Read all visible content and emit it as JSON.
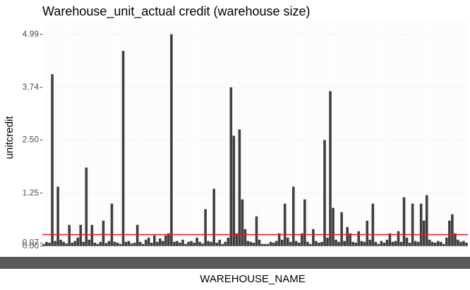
{
  "chart_data": {
    "type": "bar",
    "title": "Warehouse_unit_actual credit (warehouse size)",
    "x_label": "WAREHOUSE_NAME",
    "y_label": "unitcredit",
    "categories": [
      null,
      null,
      null,
      null,
      null,
      null,
      null,
      null,
      null,
      null,
      null,
      null,
      null,
      null,
      null,
      null,
      null,
      null,
      null,
      null,
      null,
      null,
      null,
      null,
      null,
      null,
      null,
      null,
      null,
      null,
      null,
      null,
      null,
      null,
      null,
      null,
      null,
      null,
      null,
      null,
      null,
      null,
      null,
      null,
      null,
      null,
      null,
      null,
      null,
      null,
      null,
      null,
      null,
      null,
      null,
      null,
      null,
      null,
      null,
      null,
      null,
      null,
      null,
      null,
      null,
      null,
      null,
      null,
      null,
      null,
      null,
      null,
      null,
      null,
      null,
      null,
      null,
      null,
      null,
      null,
      null,
      null,
      null,
      null,
      null,
      null,
      null,
      null,
      null,
      null,
      null,
      null,
      null,
      null,
      null,
      null,
      null,
      null,
      null,
      null,
      null,
      null,
      null,
      null,
      null,
      null,
      null,
      null,
      null,
      null,
      null,
      null,
      null,
      null,
      null,
      null,
      null,
      null,
      null,
      null,
      null,
      null,
      null,
      null,
      null,
      null,
      null,
      null,
      null,
      null,
      null,
      null,
      null,
      null,
      null,
      null,
      null,
      null,
      null,
      null,
      null,
      null,
      null,
      null,
      null,
      null,
      null,
      null,
      null,
      null
    ],
    "values": [
      0.05,
      0.1,
      0.08,
      4.05,
      0.12,
      1.4,
      0.15,
      0.1,
      0.06,
      0.5,
      0.08,
      0.12,
      0.2,
      0.5,
      0.1,
      1.85,
      0.15,
      0.5,
      0.08,
      0.05,
      0.1,
      0.6,
      0.07,
      0.12,
      1.0,
      0.1,
      0.08,
      0.05,
      4.6,
      0.1,
      0.12,
      0.06,
      0.08,
      0.5,
      0.1,
      0.05,
      0.15,
      0.2,
      0.08,
      0.25,
      0.1,
      0.18,
      0.12,
      0.25,
      0.3,
      4.99,
      0.1,
      0.12,
      0.08,
      0.15,
      0.05,
      0.1,
      0.12,
      0.08,
      0.2,
      0.1,
      0.06,
      0.87,
      0.12,
      0.1,
      1.35,
      0.08,
      0.15,
      0.05,
      0.1,
      0.2,
      3.74,
      2.6,
      0.3,
      2.75,
      1.1,
      0.4,
      0.12,
      0.1,
      0.08,
      0.7,
      0.15,
      0.05,
      0.05,
      0.05,
      0.1,
      0.08,
      0.12,
      0.3,
      0.15,
      1.0,
      0.2,
      0.1,
      1.4,
      0.12,
      0.08,
      0.3,
      1.1,
      0.1,
      0.05,
      0.4,
      0.12,
      0.08,
      0.1,
      2.5,
      0.2,
      3.65,
      0.9,
      0.15,
      0.1,
      0.8,
      0.12,
      0.45,
      0.3,
      0.1,
      0.08,
      0.35,
      0.12,
      0.1,
      0.6,
      0.15,
      1.0,
      0.1,
      0.05,
      0.12,
      0.08,
      0.15,
      0.3,
      0.1,
      0.12,
      0.35,
      0.1,
      1.15,
      0.2,
      0.08,
      1.0,
      0.12,
      0.1,
      1.0,
      0.6,
      1.2,
      0.15,
      0.1,
      0.08,
      0.12,
      0.1,
      0.05,
      0.2,
      0.6,
      0.75,
      0.3,
      0.15,
      0.1,
      0.12,
      0.08
    ],
    "color": "#3f3f3f",
    "reference_line": {
      "value": 0.27,
      "color": "#e41a1c"
    },
    "ylim": [
      -0.12,
      5.3
    ],
    "yticks": [
      {
        "value": 0,
        "label": "0.00"
      },
      0.07,
      1.25,
      {
        "value": 2.5,
        "label": "2.50"
      },
      3.74,
      4.99
    ],
    "grid": true
  }
}
